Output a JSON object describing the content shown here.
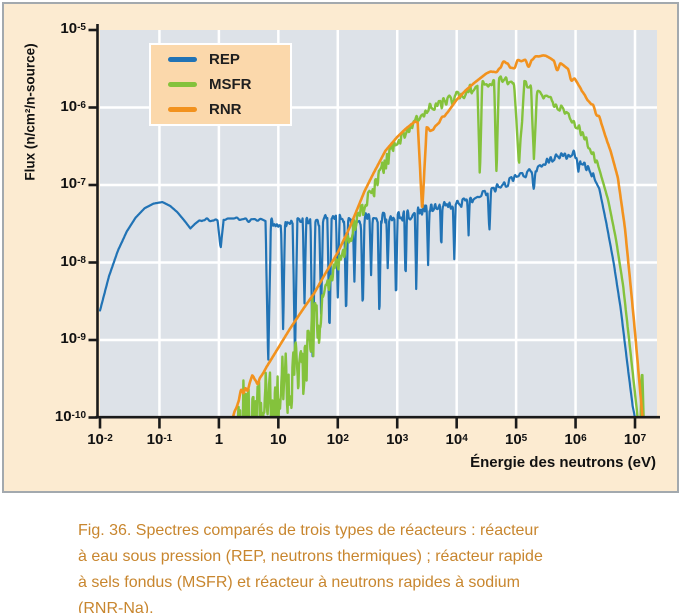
{
  "figure": {
    "caption_lines": [
      "Fig. 36. Spectres comparés de trois types de réacteurs : réacteur",
      "à eau sous pression (REP, neutrons thermiques) ; réacteur rapide",
      "à sels fondus (MSFR) et réacteur à neutrons rapides à sodium",
      "(RNR-Na)."
    ]
  },
  "chart_data": {
    "type": "line",
    "x_scale": "log",
    "y_scale": "log",
    "xlabel": "Énergie des neutrons (eV)",
    "ylabel": "Flux (n/cm²/n-source)",
    "x_log_range": [
      -2,
      7.37
    ],
    "y_log_range": [
      -10,
      -5
    ],
    "x_ticks": [
      "10^-2",
      "10^-1",
      "1",
      "10",
      "10^2",
      "10^3",
      "10^4",
      "10^5",
      "10^6",
      "10^7"
    ],
    "y_ticks": [
      "10^-5",
      "10^-6",
      "10^-7",
      "10^-8",
      "10^-9",
      "10^-10"
    ],
    "grid": true,
    "legend_position": "top-left",
    "colors": {
      "figure_bg": "#fcebd1",
      "plot_bg": "#dde2e8",
      "grid": "#ffffff",
      "axis": "#1a1a1a",
      "legend_bg": "#fbd8ab",
      "caption": "#c8862e",
      "border": "#a3a9ae"
    },
    "series": [
      {
        "name": "REP",
        "color": "#2173b5",
        "width": 2.2,
        "seed": 11,
        "log_points": [
          [
            -2.0,
            -8.62
          ],
          [
            -1.85,
            -8.18
          ],
          [
            -1.7,
            -7.85
          ],
          [
            -1.55,
            -7.6
          ],
          [
            -1.4,
            -7.42
          ],
          [
            -1.25,
            -7.3
          ],
          [
            -1.1,
            -7.24
          ],
          [
            -0.95,
            -7.22
          ],
          [
            -0.82,
            -7.27
          ],
          [
            -0.7,
            -7.35
          ],
          [
            -0.58,
            -7.46
          ],
          [
            -0.48,
            -7.56
          ],
          [
            -0.4,
            -7.5
          ],
          [
            -0.3,
            -7.44
          ],
          [
            -0.18,
            -7.45
          ],
          [
            0.0,
            -7.47
          ],
          [
            0.3,
            -7.45
          ],
          [
            0.6,
            -7.46
          ],
          [
            0.9,
            -7.47
          ],
          [
            1.2,
            -7.46
          ],
          [
            1.5,
            -7.47
          ],
          [
            1.8,
            -7.46
          ],
          [
            2.1,
            -7.45
          ],
          [
            2.4,
            -7.44
          ],
          [
            2.7,
            -7.42
          ],
          [
            3.0,
            -7.4
          ],
          [
            3.3,
            -7.36
          ],
          [
            3.6,
            -7.3
          ],
          [
            3.9,
            -7.26
          ],
          [
            4.2,
            -7.2
          ],
          [
            4.5,
            -7.1
          ],
          [
            4.8,
            -6.98
          ],
          [
            5.1,
            -6.88
          ],
          [
            5.4,
            -6.76
          ],
          [
            5.6,
            -6.68
          ],
          [
            5.8,
            -6.62
          ],
          [
            5.95,
            -6.6
          ],
          [
            6.1,
            -6.68
          ],
          [
            6.25,
            -6.82
          ],
          [
            6.4,
            -7.05
          ],
          [
            6.52,
            -7.5
          ],
          [
            6.64,
            -8.0
          ],
          [
            6.76,
            -8.6
          ],
          [
            6.87,
            -9.3
          ],
          [
            6.96,
            -9.85
          ],
          [
            7.03,
            -10.12
          ]
        ],
        "resonance_dips": [
          [
            0.03,
            0.36,
            0.05
          ],
          [
            0.83,
            1.9,
            0.045
          ],
          [
            1.08,
            1.35,
            0.035
          ],
          [
            1.28,
            1.75,
            0.04
          ],
          [
            1.44,
            1.05,
            0.03
          ],
          [
            1.58,
            1.95,
            0.04
          ],
          [
            1.72,
            1.15,
            0.03
          ],
          [
            1.86,
            1.5,
            0.035
          ],
          [
            2.0,
            0.95,
            0.03
          ],
          [
            2.14,
            1.35,
            0.03
          ],
          [
            2.28,
            0.85,
            0.028
          ],
          [
            2.42,
            1.15,
            0.03
          ],
          [
            2.56,
            0.75,
            0.026
          ],
          [
            2.7,
            1.3,
            0.028
          ],
          [
            2.84,
            0.65,
            0.025
          ],
          [
            2.98,
            1.1,
            0.026
          ],
          [
            3.14,
            0.9,
            0.024
          ],
          [
            3.32,
            0.95,
            0.024
          ],
          [
            3.52,
            0.7,
            0.022
          ],
          [
            3.74,
            0.6,
            0.022
          ],
          [
            3.96,
            0.65,
            0.022
          ],
          [
            4.2,
            0.45,
            0.02
          ],
          [
            4.55,
            0.5,
            0.028
          ],
          [
            5.3,
            0.28,
            0.03
          ],
          [
            6.05,
            0.22,
            0.03
          ]
        ],
        "noise_zones": [
          {
            "from": -0.35,
            "to": 0.8,
            "amp": 0.03,
            "step": 0.05
          },
          {
            "from": 0.8,
            "to": 4.2,
            "amp": 0.075,
            "step": 0.022
          },
          {
            "from": 4.2,
            "to": 6.35,
            "amp": 0.055,
            "step": 0.03
          }
        ]
      },
      {
        "name": "MSFR",
        "color": "#84c23c",
        "width": 2.4,
        "seed": 7,
        "log_points": [
          [
            0.22,
            -10.05
          ],
          [
            0.5,
            -10.0
          ],
          [
            0.72,
            -9.95
          ],
          [
            0.9,
            -9.8
          ],
          [
            1.05,
            -9.7
          ],
          [
            1.2,
            -9.55
          ],
          [
            1.4,
            -9.35
          ],
          [
            1.55,
            -8.9
          ],
          [
            1.7,
            -8.55
          ],
          [
            1.85,
            -8.25
          ],
          [
            2.0,
            -8.0
          ],
          [
            2.15,
            -7.75
          ],
          [
            2.3,
            -7.5
          ],
          [
            2.5,
            -7.2
          ],
          [
            2.7,
            -6.9
          ],
          [
            2.9,
            -6.6
          ],
          [
            3.1,
            -6.35
          ],
          [
            3.3,
            -6.18
          ],
          [
            3.45,
            -6.05
          ],
          [
            3.6,
            -5.98
          ],
          [
            3.8,
            -5.93
          ],
          [
            4.0,
            -5.86
          ],
          [
            4.2,
            -5.78
          ],
          [
            4.4,
            -5.7
          ],
          [
            4.6,
            -5.67
          ],
          [
            4.8,
            -5.64
          ],
          [
            5.0,
            -5.66
          ],
          [
            5.2,
            -5.72
          ],
          [
            5.4,
            -5.82
          ],
          [
            5.55,
            -5.9
          ],
          [
            5.7,
            -5.98
          ],
          [
            5.85,
            -6.1
          ],
          [
            6.0,
            -6.22
          ],
          [
            6.15,
            -6.38
          ],
          [
            6.3,
            -6.6
          ],
          [
            6.42,
            -6.85
          ],
          [
            6.55,
            -7.2
          ],
          [
            6.68,
            -7.7
          ],
          [
            6.8,
            -8.3
          ],
          [
            6.93,
            -9.2
          ],
          [
            7.03,
            -9.9
          ],
          [
            7.06,
            -10.12
          ],
          [
            7.09,
            -10.12
          ],
          [
            7.12,
            -9.35
          ],
          [
            7.15,
            -10.12
          ]
        ],
        "resonance_dips": [
          [
            4.39,
            1.2,
            0.04
          ],
          [
            4.67,
            1.25,
            0.04
          ],
          [
            5.05,
            1.05,
            0.09
          ],
          [
            5.3,
            0.85,
            0.05
          ]
        ],
        "noise_zones": [
          {
            "from": 0.3,
            "to": 1.75,
            "amp": 0.5,
            "step": 0.014
          },
          {
            "from": 1.75,
            "to": 3.0,
            "amp": 0.12,
            "step": 0.02
          },
          {
            "from": 3.0,
            "to": 4.35,
            "amp": 0.07,
            "step": 0.025
          },
          {
            "from": 4.35,
            "to": 6.45,
            "amp": 0.055,
            "step": 0.03
          }
        ]
      },
      {
        "name": "RNR",
        "color": "#f2921e",
        "width": 2.6,
        "seed": 3,
        "log_points": [
          [
            0.2,
            -10.1
          ],
          [
            0.3,
            -9.82
          ],
          [
            0.4,
            -9.62
          ],
          [
            0.48,
            -9.68
          ],
          [
            0.56,
            -9.5
          ],
          [
            0.66,
            -9.55
          ],
          [
            0.8,
            -9.35
          ],
          [
            1.0,
            -9.1
          ],
          [
            1.2,
            -8.85
          ],
          [
            1.4,
            -8.62
          ],
          [
            1.6,
            -8.4
          ],
          [
            1.8,
            -8.13
          ],
          [
            2.0,
            -7.87
          ],
          [
            2.2,
            -7.55
          ],
          [
            2.45,
            -7.08
          ],
          [
            2.6,
            -6.85
          ],
          [
            2.8,
            -6.56
          ],
          [
            3.0,
            -6.38
          ],
          [
            3.15,
            -6.27
          ],
          [
            3.3,
            -6.18
          ],
          [
            3.42,
            -6.22
          ],
          [
            3.55,
            -6.28
          ],
          [
            3.7,
            -6.22
          ],
          [
            3.85,
            -6.06
          ],
          [
            4.0,
            -5.9
          ],
          [
            4.15,
            -5.78
          ],
          [
            4.3,
            -5.68
          ],
          [
            4.5,
            -5.56
          ],
          [
            4.7,
            -5.49
          ],
          [
            4.9,
            -5.45
          ],
          [
            5.1,
            -5.42
          ],
          [
            5.3,
            -5.4
          ],
          [
            5.5,
            -5.38
          ],
          [
            5.65,
            -5.44
          ],
          [
            5.8,
            -5.5
          ],
          [
            5.95,
            -5.6
          ],
          [
            6.1,
            -5.78
          ],
          [
            6.25,
            -5.92
          ],
          [
            6.4,
            -6.14
          ],
          [
            6.55,
            -6.45
          ],
          [
            6.71,
            -6.9
          ],
          [
            6.83,
            -7.55
          ],
          [
            6.92,
            -8.25
          ],
          [
            7.0,
            -8.9
          ],
          [
            7.08,
            -9.6
          ],
          [
            7.14,
            -10.12
          ]
        ],
        "resonance_dips": [
          [
            3.42,
            1.12,
            0.075
          ]
        ],
        "noise_zones": [
          {
            "from": 0.25,
            "to": 0.75,
            "amp": 0.06,
            "step": 0.04
          },
          {
            "from": 3.5,
            "to": 3.85,
            "amp": 0.05,
            "step": 0.05
          },
          {
            "from": 4.55,
            "to": 6.1,
            "amp": 0.07,
            "step": 0.06
          },
          {
            "from": 6.1,
            "to": 6.6,
            "amp": 0.03,
            "step": 0.05
          }
        ]
      }
    ]
  }
}
